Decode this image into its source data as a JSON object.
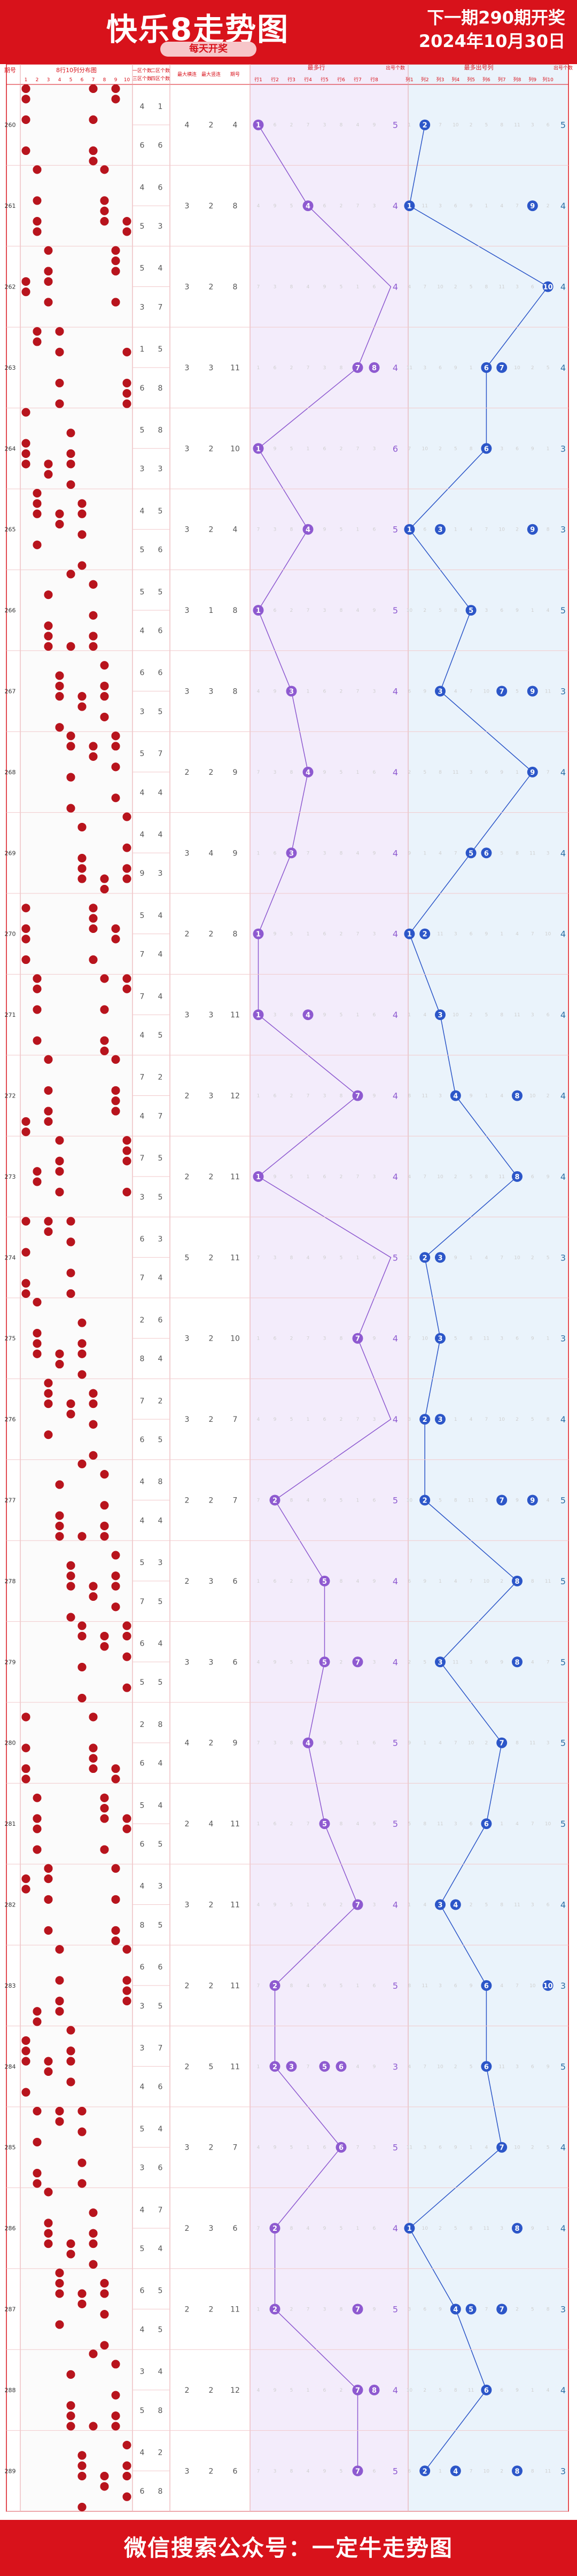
{
  "header": {
    "title": "快乐8走势图",
    "subtitle": "每天开奖",
    "next_draw": "下一期290期开奖",
    "date": "2024年10月30日"
  },
  "footer": {
    "text": "微信搜索公众号：一定牛走势图"
  },
  "colors": {
    "brand": "#d8121b",
    "red_ball": "#b8141d",
    "purple": "#8e5ad0",
    "blue": "#2c56c8",
    "count_purple": "#8e5ad0",
    "count_blue": "#2c6fa4"
  },
  "columns": {
    "issue": "期号",
    "distribution": "8行10列分布图",
    "distribution_cols": [
      "1",
      "2",
      "3",
      "4",
      "5",
      "6",
      "7",
      "8",
      "9",
      "10"
    ],
    "zone1": "一区个数",
    "zone3": "三区个数",
    "zone2": "二区个数",
    "zone4": "四区个数",
    "max_streak": "最大横连",
    "max_vert": "最大竖连",
    "max_row": "最多行",
    "max_row_count": "出号个数",
    "rows": [
      "行1",
      "行2",
      "行3",
      "行4",
      "行5",
      "行6",
      "行7",
      "行8"
    ],
    "max_col": "最多出号列",
    "max_col_count": "出号个数",
    "cols": [
      "列1",
      "列2",
      "列3",
      "列4",
      "列5",
      "列6",
      "列7",
      "列8",
      "列9",
      "列10"
    ]
  },
  "chart_data": {
    "type": "table",
    "issues": [
      "260",
      "261",
      "262",
      "263",
      "264",
      "265",
      "266",
      "267",
      "268",
      "269",
      "270",
      "271",
      "272",
      "273",
      "274",
      "275",
      "276",
      "277",
      "278",
      "279",
      "280",
      "281",
      "282",
      "283",
      "284",
      "285",
      "286",
      "287",
      "288",
      "289"
    ],
    "zone_top": [
      [
        4,
        1
      ],
      [
        4,
        6
      ],
      [
        5,
        4
      ],
      [
        1,
        5
      ],
      [
        5,
        8
      ],
      [
        4,
        5
      ],
      [
        5,
        5
      ],
      [
        6,
        6
      ],
      [
        5,
        7
      ],
      [
        4,
        4
      ],
      [
        5,
        4
      ],
      [
        7,
        4
      ],
      [
        7,
        2
      ],
      [
        7,
        5
      ],
      [
        6,
        3
      ],
      [
        2,
        6
      ],
      [
        7,
        2
      ],
      [
        4,
        8
      ],
      [
        5,
        3
      ],
      [
        6,
        4
      ],
      [
        2,
        8
      ],
      [
        5,
        4
      ],
      [
        4,
        3
      ],
      [
        6,
        6
      ],
      [
        3,
        7
      ],
      [
        5,
        4
      ],
      [
        4,
        7
      ],
      [
        6,
        5
      ],
      [
        3,
        4
      ],
      [
        4,
        2
      ]
    ],
    "zone_bottom": [
      [
        6,
        6
      ],
      [
        5,
        3
      ],
      [
        3,
        7
      ],
      [
        6,
        8
      ],
      [
        3,
        3
      ],
      [
        5,
        6
      ],
      [
        4,
        6
      ],
      [
        3,
        5
      ],
      [
        4,
        4
      ],
      [
        9,
        3
      ],
      [
        7,
        4
      ],
      [
        4,
        5
      ],
      [
        4,
        7
      ],
      [
        3,
        5
      ],
      [
        7,
        4
      ],
      [
        8,
        4
      ],
      [
        6,
        5
      ],
      [
        4,
        4
      ],
      [
        7,
        5
      ],
      [
        5,
        5
      ],
      [
        6,
        4
      ],
      [
        6,
        5
      ],
      [
        8,
        5
      ],
      [
        3,
        5
      ],
      [
        4,
        6
      ],
      [
        3,
        6
      ],
      [
        5,
        4
      ],
      [
        4,
        5
      ],
      [
        5,
        8
      ],
      [
        6,
        8
      ]
    ],
    "streaks": [
      [
        4,
        2,
        4
      ],
      [
        3,
        2,
        8
      ],
      [
        3,
        2,
        8
      ],
      [
        3,
        3,
        11
      ],
      [
        3,
        2,
        10
      ],
      [
        3,
        2,
        4
      ],
      [
        3,
        1,
        8
      ],
      [
        3,
        3,
        8
      ],
      [
        2,
        2,
        9
      ],
      [
        3,
        4,
        9
      ],
      [
        2,
        2,
        8
      ],
      [
        3,
        3,
        11
      ],
      [
        2,
        3,
        12
      ],
      [
        2,
        2,
        11
      ],
      [
        5,
        2,
        11
      ],
      [
        3,
        2,
        10
      ],
      [
        3,
        2,
        7
      ],
      [
        2,
        2,
        7
      ],
      [
        2,
        3,
        6
      ],
      [
        3,
        3,
        6
      ],
      [
        4,
        2,
        9
      ],
      [
        2,
        4,
        11
      ],
      [
        3,
        2,
        11
      ],
      [
        2,
        2,
        11
      ],
      [
        2,
        5,
        11
      ],
      [
        3,
        2,
        7
      ],
      [
        2,
        3,
        6
      ],
      [
        2,
        2,
        11
      ],
      [
        2,
        2,
        12
      ],
      [
        3,
        2,
        6
      ]
    ],
    "max_row": [
      [
        1
      ],
      [
        4
      ],
      [
        9
      ],
      [
        7,
        8
      ],
      [
        1
      ],
      [
        4
      ],
      [
        1
      ],
      [
        3
      ],
      [
        4
      ],
      [
        3,
        9
      ],
      [
        1
      ],
      [
        1,
        4
      ],
      [
        7
      ],
      [
        1
      ],
      [
        9
      ],
      [
        7
      ],
      [
        9
      ],
      [
        2
      ],
      [
        5,
        9
      ],
      [
        5,
        7
      ],
      [
        4
      ],
      [
        5
      ],
      [
        7
      ],
      [
        2
      ],
      [
        2,
        3,
        5,
        6
      ],
      [
        6
      ],
      [
        2
      ],
      [
        2,
        7
      ],
      [
        7,
        8
      ],
      [
        7
      ]
    ],
    "max_row_count": [
      5,
      4,
      4,
      4,
      6,
      5,
      5,
      4,
      4,
      4,
      4,
      4,
      4,
      4,
      5,
      4,
      4,
      5,
      4,
      4,
      5,
      5,
      4,
      5,
      3,
      5,
      4,
      5,
      4,
      5
    ],
    "max_col": [
      [
        2
      ],
      [
        1,
        9
      ],
      [
        10
      ],
      [
        6,
        7
      ],
      [
        6
      ],
      [
        1,
        3,
        9
      ],
      [
        5
      ],
      [
        3,
        7,
        9
      ],
      [
        9
      ],
      [
        5,
        6
      ],
      [
        1,
        2
      ],
      [
        3
      ],
      [
        4,
        8
      ],
      [
        8
      ],
      [
        2,
        3
      ],
      [
        3
      ],
      [
        2,
        3
      ],
      [
        2,
        7,
        9
      ],
      [
        8
      ],
      [
        3,
        8
      ],
      [
        7
      ],
      [
        6
      ],
      [
        3,
        4
      ],
      [
        6,
        10
      ],
      [
        6
      ],
      [
        7
      ],
      [
        1,
        8
      ],
      [
        4,
        5,
        7
      ],
      [
        6
      ],
      [
        2,
        4,
        8
      ]
    ],
    "max_col_count": [
      5,
      4,
      4,
      4,
      3,
      3,
      5,
      3,
      4,
      4,
      4,
      4,
      4,
      4,
      3,
      3,
      4,
      5,
      5,
      5,
      5,
      5,
      4,
      3,
      5,
      4,
      4,
      3,
      4,
      3
    ],
    "xlabel": "",
    "ylabel": ""
  }
}
